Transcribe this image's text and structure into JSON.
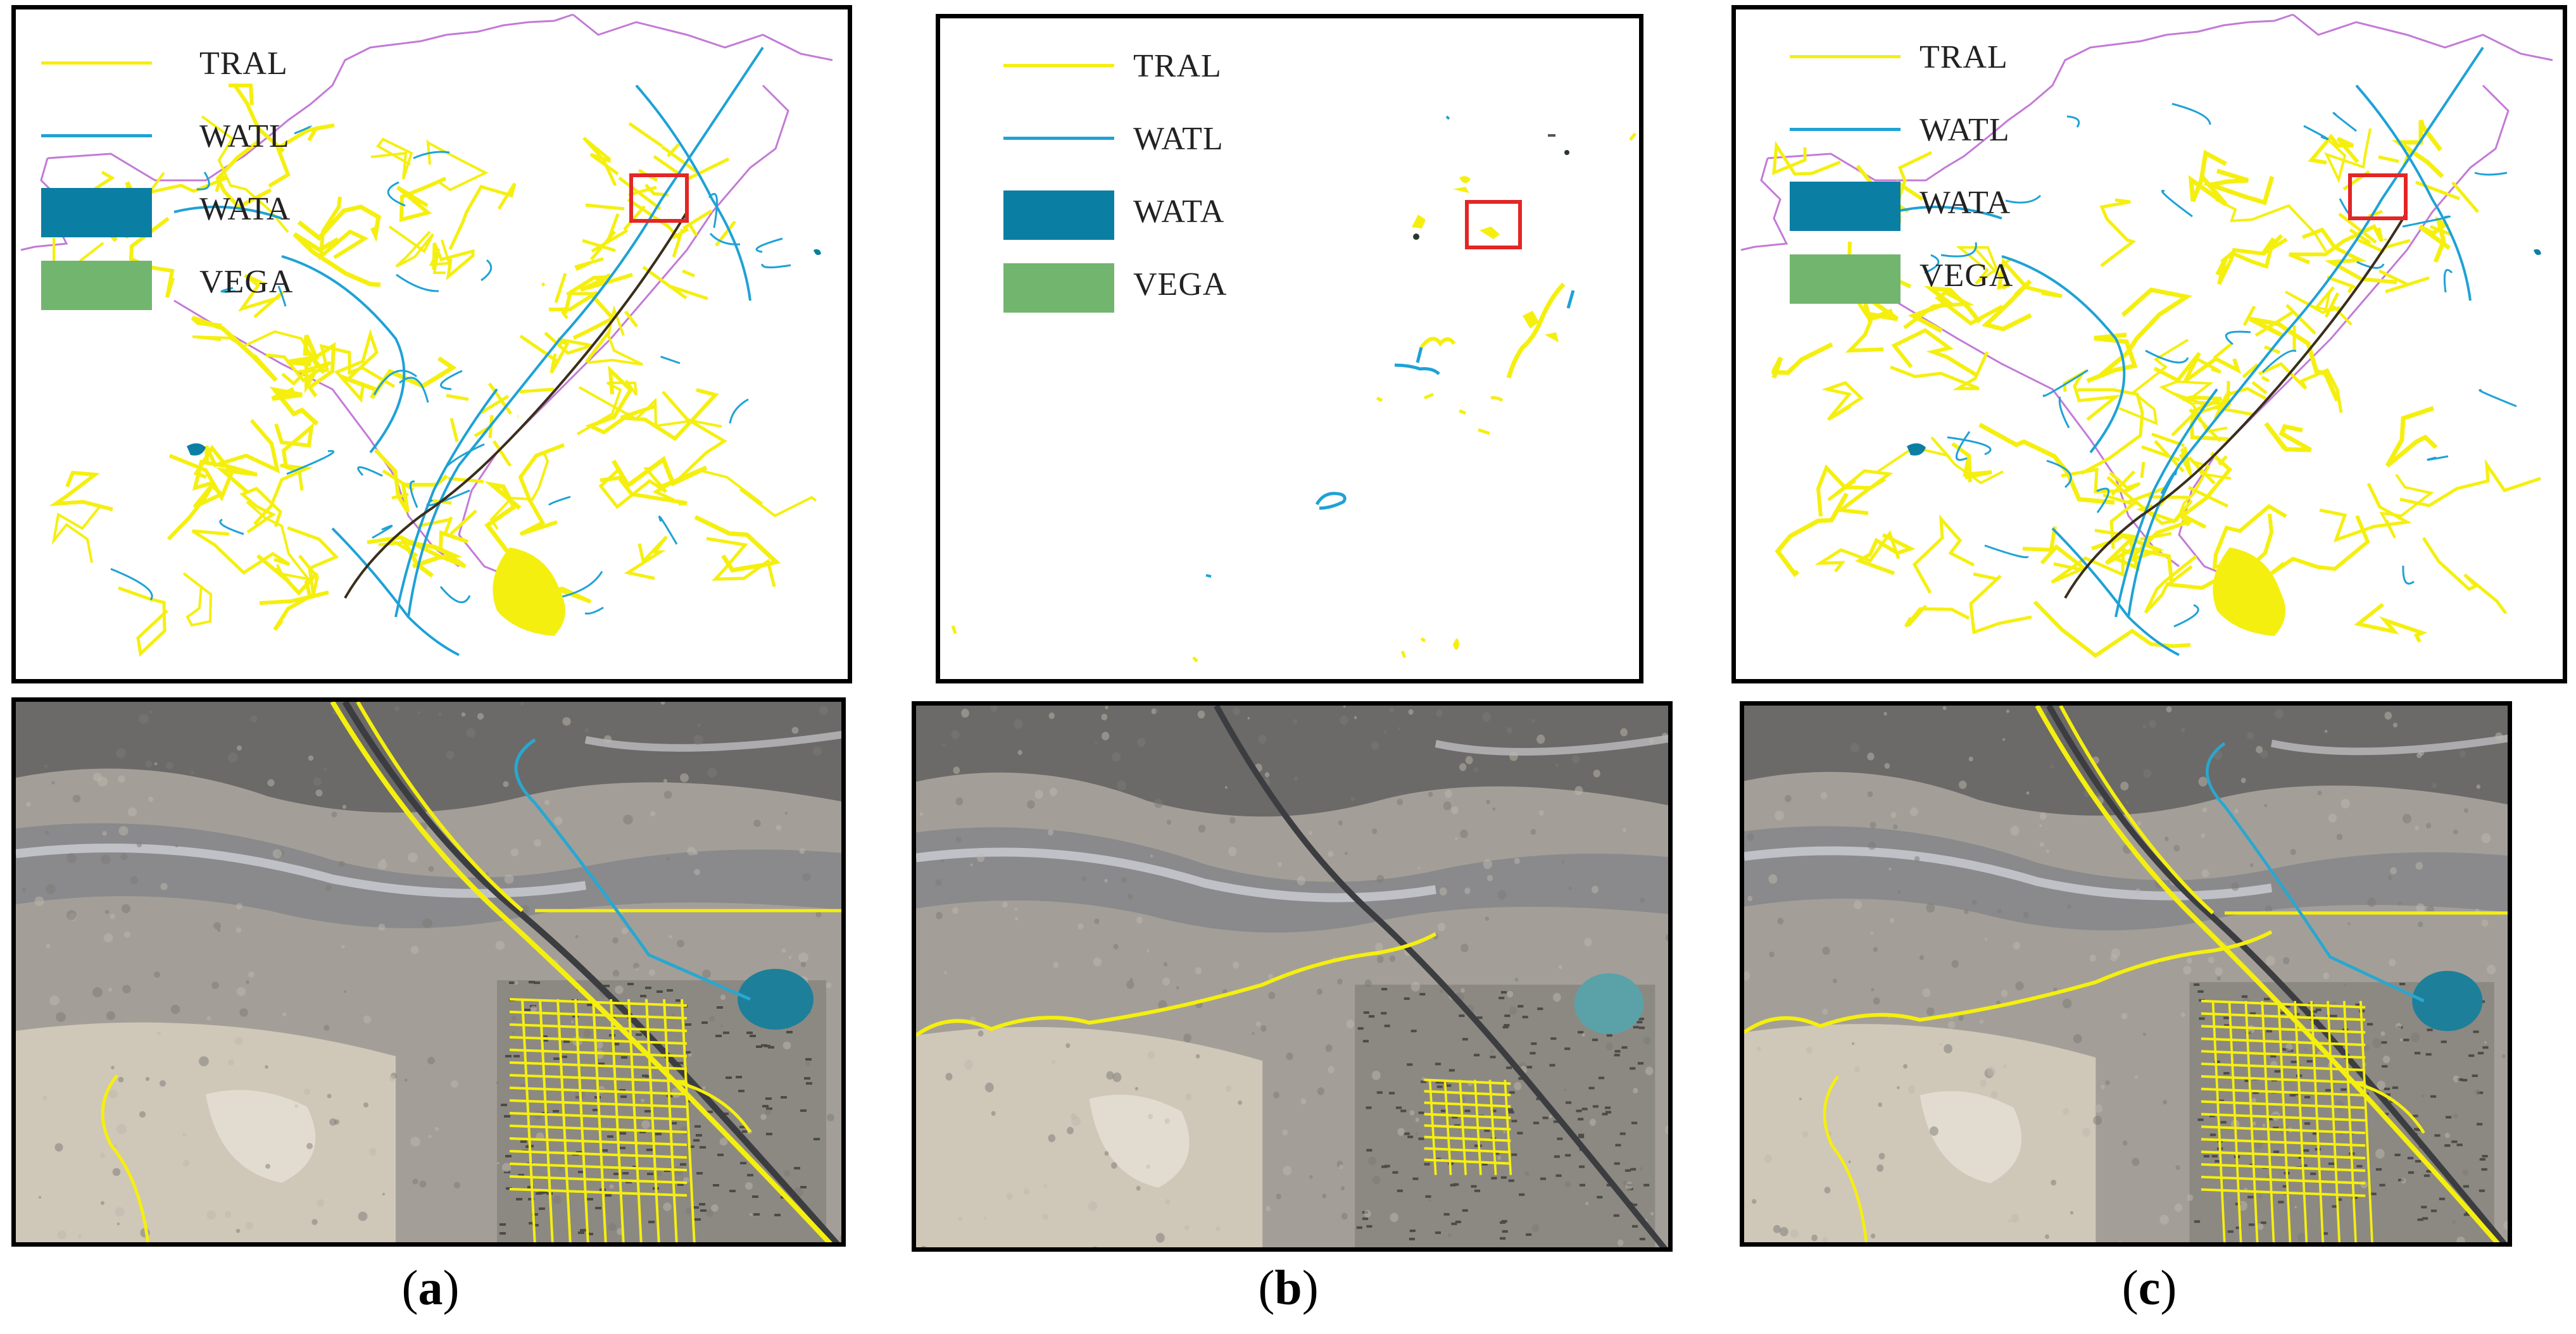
{
  "legend": {
    "items": [
      {
        "label": "TRAL",
        "kind": "line",
        "color": "#f5ef0f"
      },
      {
        "label": "WATL",
        "kind": "line",
        "color": "#1ea2d6"
      },
      {
        "label": "WATA",
        "kind": "area",
        "color": "#0b7ea3"
      },
      {
        "label": "VEGA",
        "kind": "area",
        "color": "#72b56f"
      }
    ]
  },
  "captions": [
    {
      "open": "(",
      "letter": "a",
      "close": ")"
    },
    {
      "open": "(",
      "letter": "b",
      "close": ")"
    },
    {
      "open": "(",
      "letter": "c",
      "close": ")"
    }
  ],
  "colors": {
    "border_line": "#c37ad6",
    "highlight_box": "#e32626",
    "satellite_base": "#a39f98"
  }
}
